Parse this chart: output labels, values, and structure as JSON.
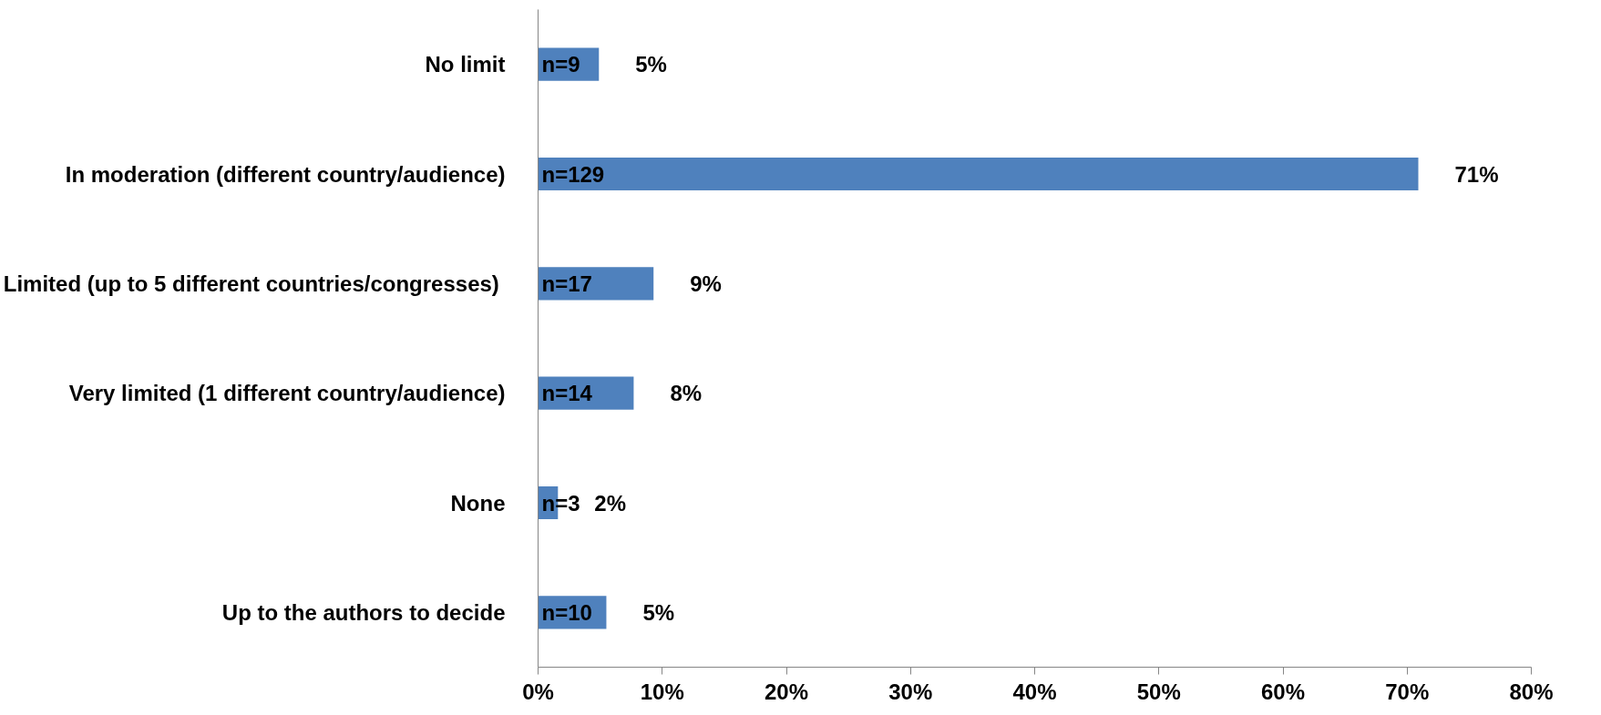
{
  "chart_data": {
    "type": "bar",
    "orientation": "horizontal",
    "categories": [
      "No limit",
      "In moderation (different country/audience)",
      "Limited (up to  5 different countries/congresses)",
      "Very limited (1 different country/audience)",
      "None",
      "Up to the authors to decide"
    ],
    "values": [
      4.9,
      70.9,
      9.3,
      7.7,
      1.6,
      5.5
    ],
    "color": "#4f81bd",
    "value_labels": [
      "5%",
      "71%",
      "9%",
      "8%",
      "2%",
      "5%"
    ],
    "annotations": [
      "n=9",
      "n=129",
      "n=17",
      "n=14",
      "n=3",
      "n=10"
    ],
    "xlim": [
      0,
      80
    ],
    "xticks": [
      {
        "value": 0,
        "label": "0%"
      },
      {
        "value": 10,
        "label": "10%"
      },
      {
        "value": 20,
        "label": "20%"
      },
      {
        "value": 30,
        "label": "30%"
      },
      {
        "value": 40,
        "label": "40%"
      },
      {
        "value": 50,
        "label": "50%"
      },
      {
        "value": 60,
        "label": "60%"
      },
      {
        "value": 70,
        "label": "70%"
      },
      {
        "value": 80,
        "label": "80%"
      }
    ],
    "grid": false
  }
}
